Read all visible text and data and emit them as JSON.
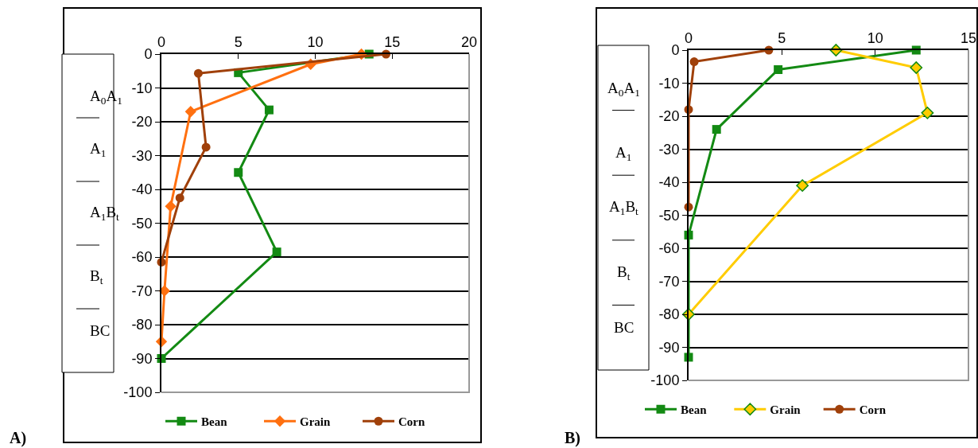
{
  "chart_data": [
    {
      "type": "line",
      "xlim": [
        0,
        20
      ],
      "xticks": [
        0,
        5,
        10,
        15,
        20
      ],
      "ylim": [
        -100,
        0
      ],
      "yticks": [
        0,
        -10,
        -20,
        -30,
        -40,
        -50,
        -60,
        -70,
        -80,
        -90,
        -100
      ],
      "grid": "y",
      "legend": "bottom",
      "annotations": [
        "A)",
        "A$_{0}$A$_{1}$",
        "A$_{1}$",
        "A$_{1}$B$_{t}$",
        "B$_{t}$",
        "BC"
      ],
      "series": [
        {
          "name": "Bean",
          "color": "#138a13",
          "marker": "square",
          "x": [
            13.5,
            5,
            7,
            5,
            7.5,
            0
          ],
          "values": [
            0,
            -5.5,
            -16.5,
            -35,
            -58.5,
            -90
          ]
        },
        {
          "name": "Grain",
          "color": "#ff7010",
          "marker": "diamond",
          "x": [
            13,
            9.7,
            1.9,
            0.6,
            0.2,
            0
          ],
          "values": [
            0,
            -3,
            -17,
            -45,
            -70,
            -85
          ]
        },
        {
          "name": "Corn",
          "color": "#a0400a",
          "marker": "circle",
          "x": [
            14.6,
            2.4,
            2.9,
            1.2,
            0
          ],
          "values": [
            0,
            -5.7,
            -27.5,
            -42.5,
            -61.5
          ]
        }
      ]
    },
    {
      "type": "line",
      "xlim": [
        0,
        15
      ],
      "xticks": [
        0,
        5,
        10,
        15
      ],
      "ylim": [
        -100,
        0
      ],
      "yticks": [
        0,
        -10,
        -20,
        -30,
        -40,
        -50,
        -60,
        -70,
        -80,
        -90,
        -100
      ],
      "grid": "y",
      "legend": "bottom",
      "annotations": [
        "B)",
        "A$_{0}$A$_{1}$",
        "A$_{1}$",
        "A$_{1}$B$_{t}$",
        "B$_{t}$",
        "BC"
      ],
      "series": [
        {
          "name": "Bean",
          "color": "#138a13",
          "marker": "square",
          "x": [
            12.2,
            4.8,
            1.5,
            0,
            0
          ],
          "values": [
            0,
            -5.9,
            -24,
            -56,
            -93
          ]
        },
        {
          "name": "Grain",
          "color": "#ffcc00",
          "marker": "diamond",
          "x": [
            7.9,
            12.2,
            12.8,
            6.1,
            0
          ],
          "values": [
            0,
            -5.3,
            -19,
            -41,
            -80
          ]
        },
        {
          "name": "Corn",
          "color": "#a0400a",
          "marker": "circle",
          "x": [
            4.3,
            0.3,
            0,
            0
          ],
          "values": [
            0,
            -3.5,
            -18,
            -47.5
          ]
        }
      ]
    }
  ]
}
